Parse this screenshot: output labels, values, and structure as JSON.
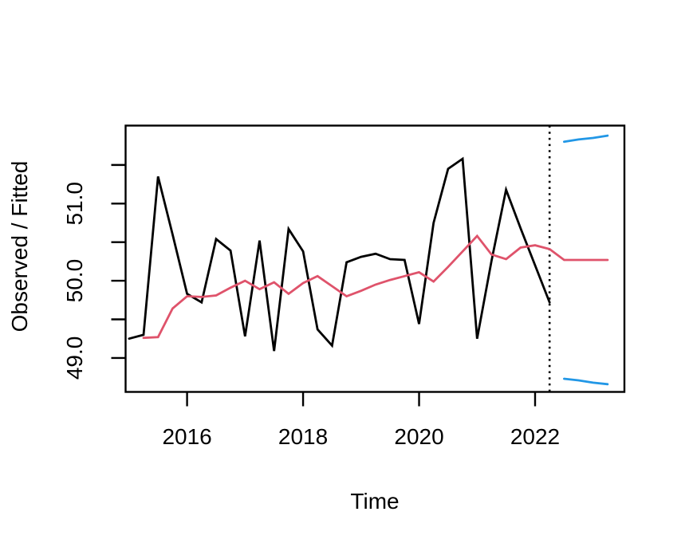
{
  "chart_data": {
    "type": "line",
    "title": "",
    "xlabel": "Time",
    "ylabel": "Observed / Fitted",
    "xlim": [
      2014.94,
      2023.54
    ],
    "ylim": [
      48.56,
      52.01
    ],
    "grid": false,
    "legend": "none",
    "x_ticks": {
      "values": [
        2016,
        2018,
        2020,
        2022
      ],
      "labels": [
        "2016",
        "2018",
        "2020",
        "2022"
      ]
    },
    "y_ticks": {
      "values": [
        49.0,
        49.5,
        50.0,
        50.5,
        51.0,
        51.5
      ],
      "labels": [
        "49.0",
        "",
        "50.0",
        "",
        "51.0",
        ""
      ]
    },
    "forecast_divider_x": 2022.25,
    "divider_style": "dotted",
    "colors": {
      "observed": "#000000",
      "fitted": "#DF536B",
      "forecast_band": "#2297E6",
      "axis": "#000000",
      "background": "#FFFFFF"
    },
    "series": [
      {
        "name": "observed",
        "color": "#000000",
        "t_start": 2015.0,
        "t_step": 0.25,
        "values": [
          49.25,
          49.3,
          51.35,
          50.6,
          49.83,
          49.72,
          50.54,
          50.39,
          49.28,
          50.52,
          49.09,
          50.67,
          50.38,
          49.37,
          49.16,
          50.24,
          50.31,
          50.35,
          50.28,
          50.27,
          49.44,
          50.75,
          51.45,
          51.58,
          49.25,
          50.26,
          51.18,
          50.68,
          50.2,
          49.72
        ]
      },
      {
        "name": "fitted",
        "color": "#DF536B",
        "t_start": 2015.25,
        "t_step": 0.25,
        "values": [
          49.26,
          49.27,
          49.64,
          49.8,
          49.79,
          49.81,
          49.91,
          50.0,
          49.89,
          49.98,
          49.83,
          49.97,
          50.06,
          49.93,
          49.8,
          49.87,
          49.95,
          50.01,
          50.06,
          50.11,
          49.99,
          50.18,
          50.38,
          50.58,
          50.34,
          50.28,
          50.43,
          50.46,
          50.41,
          50.27,
          50.27,
          50.27,
          50.27
        ]
      },
      {
        "name": "forecast-upper",
        "color": "#2297E6",
        "t_start": 2022.5,
        "t_step": 0.25,
        "values": [
          51.8,
          51.83,
          51.85,
          51.88
        ]
      },
      {
        "name": "forecast-lower",
        "color": "#2297E6",
        "t_start": 2022.5,
        "t_step": 0.25,
        "values": [
          48.73,
          48.71,
          48.68,
          48.66
        ]
      }
    ]
  }
}
